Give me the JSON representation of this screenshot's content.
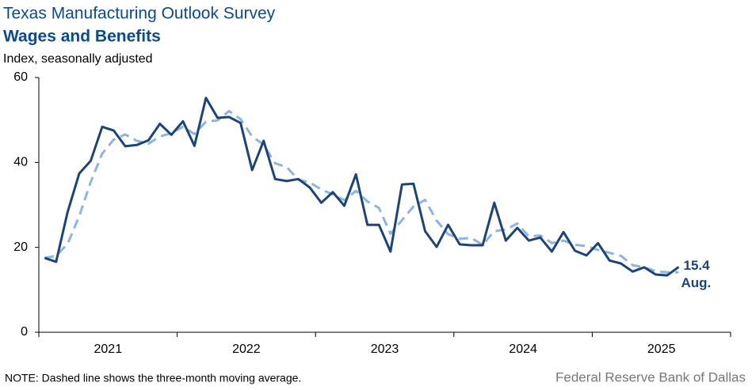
{
  "chart_data": {
    "type": "line",
    "title": "Texas Manufacturing Outlook Survey",
    "subtitle": "Wages and Benefits",
    "y_label": "Index, seasonally adjusted",
    "note": "NOTE: Dashed line shows the three-month  moving average.",
    "source": "Federal Reserve Bank of Dallas",
    "annotation": "Aug.",
    "xlim": [
      2021,
      2026
    ],
    "xticks": [
      {
        "value": 2021,
        "label": "2021"
      },
      {
        "value": 2022,
        "label": "2022"
      },
      {
        "value": 2023,
        "label": "2023"
      },
      {
        "value": 2024,
        "label": "2024"
      },
      {
        "value": 2025,
        "label": "2025"
      }
    ],
    "ylim": [
      0,
      60
    ],
    "yticks": [
      0,
      20,
      40,
      60
    ],
    "grid": false,
    "x": [
      2021.042,
      2021.125,
      2021.208,
      2021.292,
      2021.375,
      2021.458,
      2021.542,
      2021.625,
      2021.708,
      2021.792,
      2021.875,
      2021.958,
      2022.042,
      2022.125,
      2022.208,
      2022.292,
      2022.375,
      2022.458,
      2022.542,
      2022.625,
      2022.708,
      2022.792,
      2022.875,
      2022.958,
      2023.042,
      2023.125,
      2023.208,
      2023.292,
      2023.375,
      2023.458,
      2023.542,
      2023.625,
      2023.708,
      2023.792,
      2023.875,
      2023.958,
      2024.042,
      2024.125,
      2024.208,
      2024.292,
      2024.375,
      2024.458,
      2024.542,
      2024.625,
      2024.708,
      2024.792,
      2024.875,
      2024.958,
      2025.042,
      2025.125,
      2025.208,
      2025.292,
      2025.375,
      2025.458,
      2025.542,
      2025.625
    ],
    "series": [
      {
        "color": "#1d4477",
        "dashed": false,
        "values": [
          17.5,
          16.6,
          28.3,
          37.4,
          40.4,
          48.4,
          47.5,
          43.8,
          44.1,
          45.2,
          49.1,
          46.5,
          49.7,
          43.9,
          55.2,
          50.5,
          50.7,
          49.3,
          38.2,
          45.1,
          36.1,
          35.6,
          36.1,
          34.1,
          30.5,
          33.0,
          29.8,
          37.2,
          25.3,
          25.3,
          19.0,
          34.8,
          35.0,
          23.8,
          20.1,
          25.3,
          20.7,
          20.5,
          20.5,
          30.5,
          21.6,
          24.6,
          21.6,
          22.3,
          19.0,
          23.6,
          19.2,
          18.1,
          21.0,
          16.9,
          16.2,
          14.3,
          15.3,
          13.6,
          13.4,
          15.4
        ]
      },
      {
        "color": "#8fb4dd",
        "dashed": true,
        "values": [
          17.5,
          18.0,
          20.8,
          27.4,
          35.4,
          42.1,
          45.4,
          46.6,
          45.1,
          44.4,
          46.1,
          46.9,
          48.4,
          46.7,
          49.6,
          49.9,
          52.1,
          50.2,
          46.1,
          44.2,
          39.8,
          38.9,
          35.9,
          35.3,
          33.6,
          32.5,
          31.1,
          33.3,
          30.8,
          29.3,
          23.2,
          26.4,
          29.6,
          31.2,
          26.3,
          23.1,
          22.0,
          22.2,
          20.6,
          23.8,
          24.2,
          25.6,
          22.6,
          22.8,
          21.0,
          21.6,
          20.6,
          20.3,
          19.4,
          18.7,
          18.0,
          15.8,
          15.3,
          14.4,
          14.1,
          14.1
        ]
      }
    ]
  }
}
